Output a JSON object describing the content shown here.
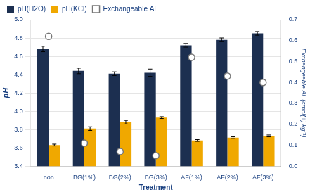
{
  "chart_data": {
    "type": "bar",
    "categories": [
      "non",
      "BG(1%)",
      "BG(2%)",
      "BG(3%)",
      "AF(1%)",
      "AF(2%)",
      "AF(3%)"
    ],
    "series": [
      {
        "name": "pH(H2O)",
        "color": "#1c2f50",
        "values": [
          4.68,
          4.44,
          4.41,
          4.42,
          4.72,
          4.78,
          4.85
        ],
        "errors": [
          0.03,
          0.03,
          0.02,
          0.04,
          0.02,
          0.02,
          0.02
        ]
      },
      {
        "name": "pH(KCl)",
        "color": "#f0a800",
        "values": [
          3.63,
          3.81,
          3.88,
          3.93,
          3.68,
          3.71,
          3.73
        ],
        "errors": [
          0.01,
          0.02,
          0.02,
          0.01,
          0.01,
          0.01,
          0.01
        ]
      },
      {
        "name": "Exchangeable Al",
        "type": "scatter",
        "marker": "o",
        "color": "#777777",
        "axis": "y2",
        "values": [
          0.62,
          0.11,
          0.07,
          0.05,
          0.52,
          0.43,
          0.4
        ]
      }
    ],
    "xlabel": "Treatment",
    "ylabel": "pH",
    "y2label": "Exchangeable Al  (cmol(+) kg⁻¹)",
    "ylim": [
      3.4,
      5.0
    ],
    "yticks": [
      3.4,
      3.6,
      3.8,
      {
        "value": 4,
        "label": "4.0"
      },
      4.2,
      4.4,
      4.6,
      4.8,
      {
        "value": 5,
        "label": "5.0"
      }
    ],
    "y2lim": [
      0,
      0.7
    ],
    "y2ticks": [
      {
        "value": 0,
        "label": "0.0"
      },
      0.1,
      0.2,
      0.3,
      0.4,
      0.5,
      0.6,
      0.7
    ],
    "grid": true,
    "legend": "upper left"
  }
}
